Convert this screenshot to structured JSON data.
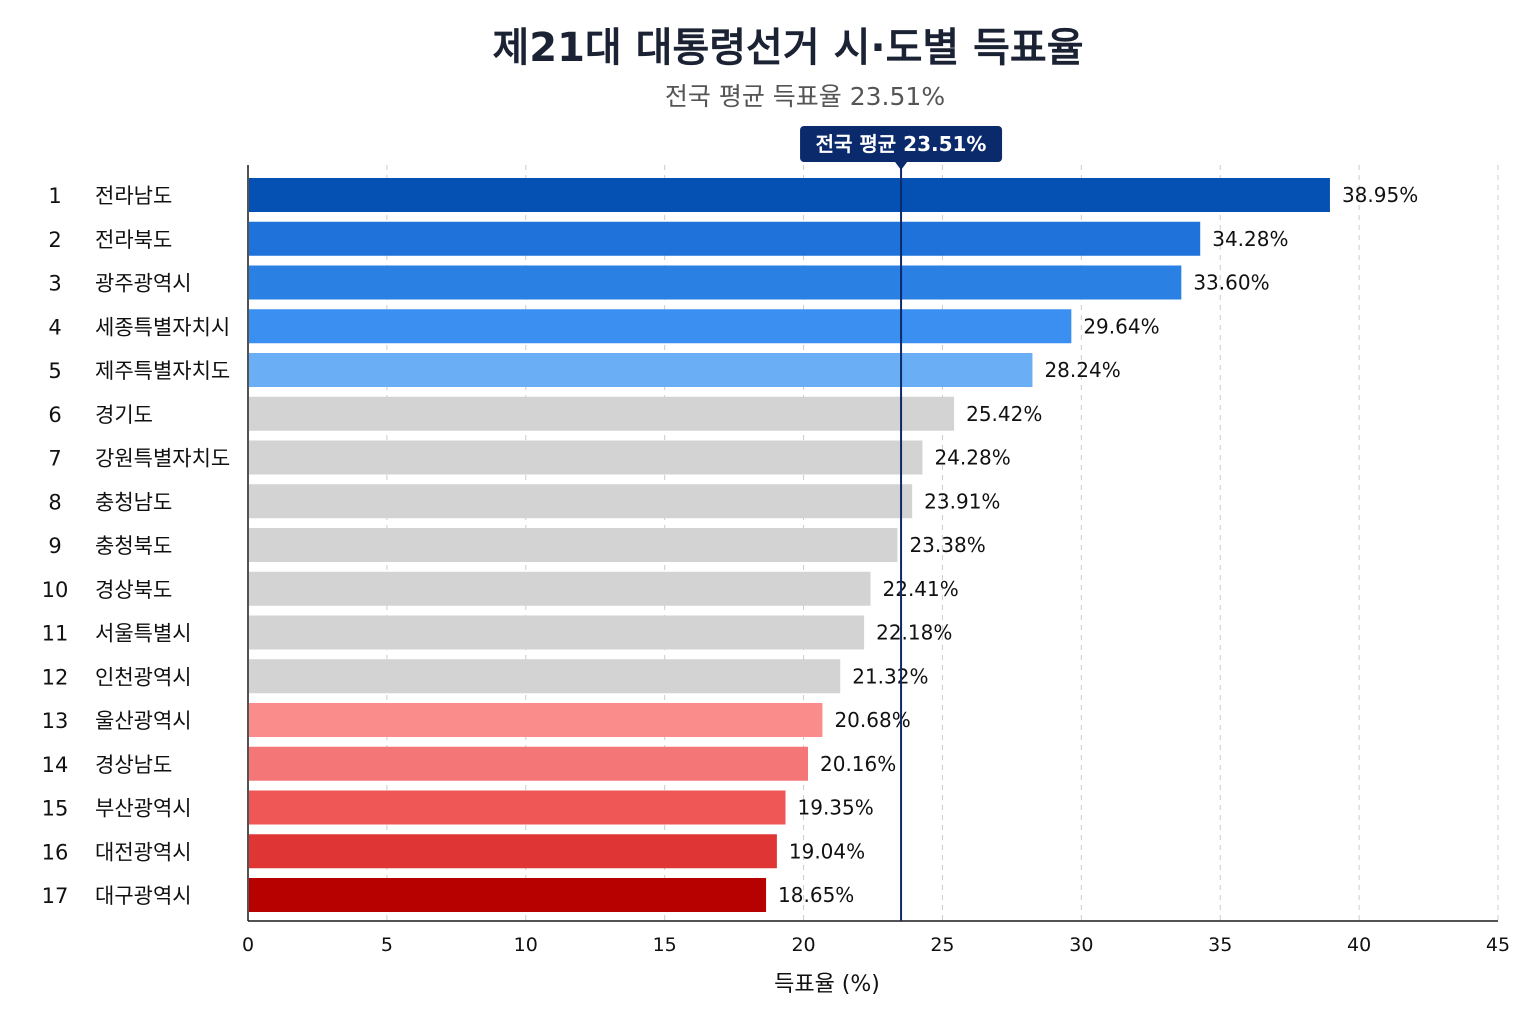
{
  "chart_data": {
    "type": "bar",
    "orientation": "horizontal",
    "title": "제21대 대통령선거 시·도별 득표율",
    "subtitle": "전국 평균 득표율 23.51%",
    "xlabel": "득표율 (%)",
    "ylabel": "",
    "xlim": [
      0,
      45
    ],
    "x_ticks": [
      "0",
      "5",
      "10",
      "15",
      "20",
      "25",
      "30",
      "35",
      "40",
      "45"
    ],
    "grid": "vertical-dashed",
    "ranks": [
      "1",
      "2",
      "3",
      "4",
      "5",
      "6",
      "7",
      "8",
      "9",
      "10",
      "11",
      "12",
      "13",
      "14",
      "15",
      "16",
      "17"
    ],
    "categories": [
      "전라남도",
      "전라북도",
      "광주광역시",
      "세종특별자치시",
      "제주특별자치도",
      "경기도",
      "강원특별자치도",
      "충청남도",
      "충청북도",
      "경상북도",
      "서울특별시",
      "인천광역시",
      "울산광역시",
      "경상남도",
      "부산광역시",
      "대전광역시",
      "대구광역시"
    ],
    "values": [
      38.95,
      34.28,
      33.6,
      29.64,
      28.24,
      25.42,
      24.28,
      23.91,
      23.38,
      22.41,
      22.18,
      21.32,
      20.68,
      20.16,
      19.35,
      19.04,
      18.65
    ],
    "value_labels": [
      "38.95%",
      "34.28%",
      "33.60%",
      "29.64%",
      "28.24%",
      "25.42%",
      "24.28%",
      "23.91%",
      "23.38%",
      "22.41%",
      "22.18%",
      "21.32%",
      "20.68%",
      "20.16%",
      "19.35%",
      "19.04%",
      "18.65%"
    ],
    "colors": [
      "#0451b3",
      "#1f72d9",
      "#2a80e3",
      "#3a8ff0",
      "#6aaff5",
      "#d3d3d3",
      "#d3d3d3",
      "#d3d3d3",
      "#d3d3d3",
      "#d3d3d3",
      "#d3d3d3",
      "#d3d3d3",
      "#fa8c8c",
      "#f57676",
      "#ef5656",
      "#e03535",
      "#b70000"
    ],
    "reference_line": {
      "value": 23.51,
      "label": "전국 평균 23.51%",
      "color": "#0b2a6b"
    },
    "axis_color": "#1a1a1a",
    "grid_color": "#cccccc"
  }
}
